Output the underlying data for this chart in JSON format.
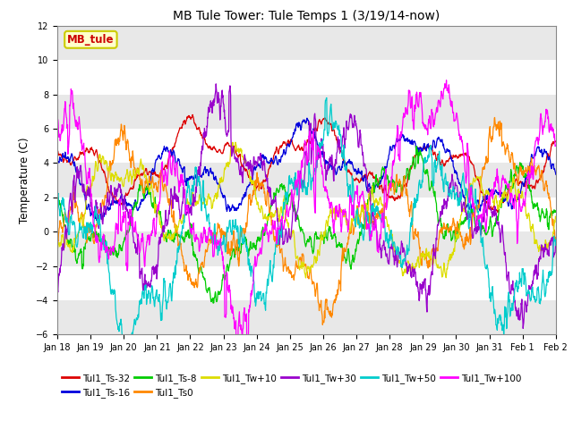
{
  "title": "MB Tule Tower: Tule Temps 1 (3/19/14-now)",
  "ylabel": "Temperature (C)",
  "xlim_days": 16,
  "ylim": [
    -6,
    12
  ],
  "yticks": [
    -6,
    -4,
    -2,
    0,
    2,
    4,
    6,
    8,
    10,
    12
  ],
  "x_tick_labels": [
    "Jan 18",
    "Jan 19",
    "Jan 20",
    "Jan 21",
    "Jan 22",
    "Jan 23",
    "Jan 24",
    "Jan 25",
    "Jan 26",
    "Jan 27",
    "Jan 28",
    "Jan 29",
    "Jan 30",
    "Jan 31",
    "Feb 1",
    "Feb 2"
  ],
  "annotation_box": "MB_tule",
  "annotation_color": "#cc0000",
  "annotation_bg": "#ffffcc",
  "annotation_border": "#cccc00",
  "background_color": "#ffffff",
  "plot_bg_color": "#ffffff",
  "band_color": "#e8e8e8",
  "series": [
    {
      "label": "Tul1_Ts-32",
      "color": "#dd0000"
    },
    {
      "label": "Tul1_Ts-16",
      "color": "#0000dd"
    },
    {
      "label": "Tul1_Ts-8",
      "color": "#00cc00"
    },
    {
      "label": "Tul1_Ts0",
      "color": "#ff8800"
    },
    {
      "label": "Tul1_Tw+10",
      "color": "#dddd00"
    },
    {
      "label": "Tul1_Tw+30",
      "color": "#9900cc"
    },
    {
      "label": "Tul1_Tw+50",
      "color": "#00cccc"
    },
    {
      "label": "Tul1_Tw+100",
      "color": "#ff00ff"
    }
  ],
  "legend_ncol": 6,
  "title_fontsize": 10,
  "tick_fontsize": 7,
  "legend_fontsize": 7.5
}
